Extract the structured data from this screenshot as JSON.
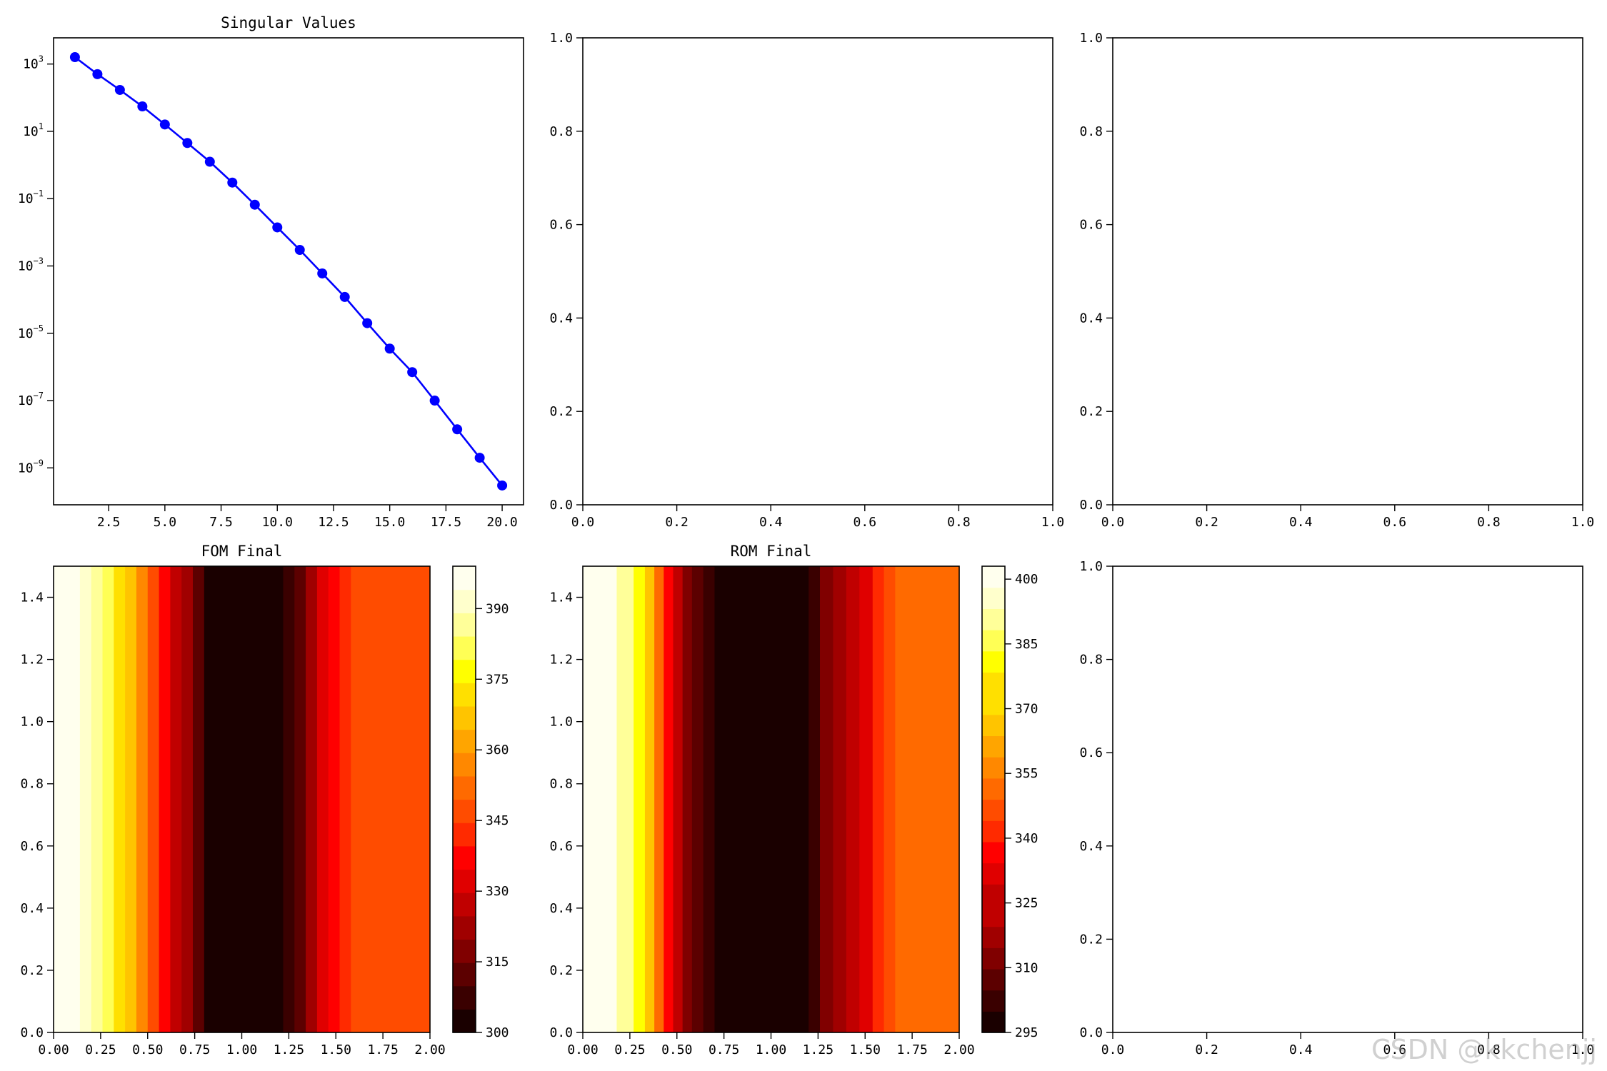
{
  "watermark": "CSDN @kkchenjj",
  "colors": {
    "line": "#0000ff",
    "hot": [
      "#1a0000",
      "#3a0000",
      "#5c0000",
      "#800000",
      "#a00000",
      "#c00000",
      "#e00000",
      "#ff0000",
      "#ff2a00",
      "#ff4c00",
      "#ff6a00",
      "#ff8800",
      "#ffa500",
      "#ffc400",
      "#ffe000",
      "#ffff00",
      "#ffff55",
      "#ffff99",
      "#ffffcc",
      "#ffffee"
    ]
  },
  "chart_data": [
    {
      "id": "singular",
      "type": "line",
      "title": "Singular Values",
      "xlabel": "",
      "ylabel": "",
      "yscale": "log",
      "x": [
        1,
        2,
        3,
        4,
        5,
        6,
        7,
        8,
        9,
        10,
        11,
        12,
        13,
        14,
        15,
        16,
        17,
        18,
        19,
        20
      ],
      "y": [
        1600,
        500,
        170,
        55,
        16,
        4.5,
        1.25,
        0.3,
        0.066,
        0.014,
        0.003,
        0.0006,
        0.00012,
        2e-05,
        3.5e-06,
        7e-07,
        1e-07,
        1.4e-08,
        2e-09,
        3e-10
      ],
      "xlim": [
        0.05,
        20.95
      ],
      "ylim": [
        8e-11,
        6000
      ],
      "xticks": [
        2.5,
        5.0,
        7.5,
        10.0,
        12.5,
        15.0,
        17.5,
        20.0
      ],
      "xtick_labels": [
        "2.5",
        "5.0",
        "7.5",
        "10.0",
        "12.5",
        "15.0",
        "17.5",
        "20.0"
      ],
      "yticks": [
        {
          "value": 1000,
          "base": "10",
          "exp": "3"
        },
        {
          "value": 10,
          "base": "10",
          "exp": "1"
        },
        {
          "value": 0.1,
          "base": "10",
          "exp": "−1"
        },
        {
          "value": 0.001,
          "base": "10",
          "exp": "−3"
        },
        {
          "value": 1e-05,
          "base": "10",
          "exp": "−5"
        },
        {
          "value": 1e-07,
          "base": "10",
          "exp": "−7"
        },
        {
          "value": 1e-09,
          "base": "10",
          "exp": "−9"
        }
      ]
    },
    {
      "id": "empty1",
      "type": "scatter",
      "title": "",
      "xlim": [
        0,
        1
      ],
      "ylim": [
        0,
        1
      ],
      "xticks": [
        0,
        0.2,
        0.4,
        0.6,
        0.8,
        1.0
      ],
      "xtick_labels": [
        "0.0",
        "0.2",
        "0.4",
        "0.6",
        "0.8",
        "1.0"
      ],
      "yticks": [
        0,
        0.2,
        0.4,
        0.6,
        0.8,
        1.0
      ],
      "ytick_labels": [
        "0.0",
        "0.2",
        "0.4",
        "0.6",
        "0.8",
        "1.0"
      ]
    },
    {
      "id": "empty2",
      "type": "scatter",
      "title": "",
      "xlim": [
        0,
        1
      ],
      "ylim": [
        0,
        1
      ],
      "xticks": [
        0,
        0.2,
        0.4,
        0.6,
        0.8,
        1.0
      ],
      "xtick_labels": [
        "0.0",
        "0.2",
        "0.4",
        "0.6",
        "0.8",
        "1.0"
      ],
      "yticks": [
        0,
        0.2,
        0.4,
        0.6,
        0.8,
        1.0
      ],
      "ytick_labels": [
        "0.0",
        "0.2",
        "0.4",
        "0.6",
        "0.8",
        "1.0"
      ]
    },
    {
      "id": "fom",
      "type": "heatmap",
      "title": "FOM Final",
      "xlim": [
        0,
        2
      ],
      "ylim": [
        0,
        1.5
      ],
      "xticks": [
        0,
        0.25,
        0.5,
        0.75,
        1.0,
        1.25,
        1.5,
        1.75,
        2.0
      ],
      "xtick_labels": [
        "0.00",
        "0.25",
        "0.50",
        "0.75",
        "1.00",
        "1.25",
        "1.50",
        "1.75",
        "2.00"
      ],
      "yticks": [
        0,
        0.2,
        0.4,
        0.6,
        0.8,
        1.0,
        1.2,
        1.4
      ],
      "ytick_labels": [
        "0.0",
        "0.2",
        "0.4",
        "0.6",
        "0.8",
        "1.0",
        "1.2",
        "1.4"
      ],
      "x": [
        0,
        0.07,
        0.14,
        0.2,
        0.26,
        0.32,
        0.38,
        0.44,
        0.5,
        0.56,
        0.62,
        0.68,
        0.74,
        0.8,
        1.0,
        1.22,
        1.28,
        1.34,
        1.4,
        1.46,
        1.52,
        1.58,
        1.64,
        1.74,
        1.9,
        2.0
      ],
      "values": [
        399,
        399,
        395,
        390,
        385,
        378,
        370,
        362,
        352,
        342,
        333,
        324,
        316,
        306,
        302,
        302,
        310,
        318,
        326,
        334,
        340,
        345,
        349,
        349,
        349,
        349
      ],
      "colorbar": {
        "min": 300,
        "max": 399,
        "levels": 20,
        "ticks": [
          300,
          315,
          330,
          345,
          360,
          375,
          390
        ],
        "tick_labels": [
          "300",
          "315",
          "330",
          "345",
          "360",
          "375",
          "390"
        ]
      }
    },
    {
      "id": "rom",
      "type": "heatmap",
      "title": "ROM Final",
      "xlim": [
        0,
        2
      ],
      "ylim": [
        0,
        1.5
      ],
      "xticks": [
        0,
        0.25,
        0.5,
        0.75,
        1.0,
        1.25,
        1.5,
        1.75,
        2.0
      ],
      "xtick_labels": [
        "0.00",
        "0.25",
        "0.50",
        "0.75",
        "1.00",
        "1.25",
        "1.50",
        "1.75",
        "2.00"
      ],
      "yticks": [
        0,
        0.2,
        0.4,
        0.6,
        0.8,
        1.0,
        1.2,
        1.4
      ],
      "ytick_labels": [
        "0.0",
        "0.2",
        "0.4",
        "0.6",
        "0.8",
        "1.0",
        "1.2",
        "1.4"
      ],
      "x": [
        0,
        0.09,
        0.18,
        0.27,
        0.33,
        0.38,
        0.43,
        0.48,
        0.53,
        0.58,
        0.64,
        0.7,
        0.76,
        1.0,
        1.2,
        1.26,
        1.33,
        1.4,
        1.47,
        1.54,
        1.6,
        1.66,
        1.78,
        1.9,
        2.0
      ],
      "values": [
        402,
        402,
        395,
        385,
        375,
        360,
        345,
        330,
        318,
        308,
        302,
        298,
        296,
        296,
        300,
        306,
        314,
        322,
        330,
        338,
        344,
        348,
        352,
        352,
        352
      ],
      "colorbar": {
        "min": 295,
        "max": 403,
        "levels": 22,
        "ticks": [
          295,
          310,
          325,
          340,
          355,
          370,
          385,
          400
        ],
        "tick_labels": [
          "295",
          "310",
          "325",
          "340",
          "355",
          "370",
          "385",
          "400"
        ]
      }
    },
    {
      "id": "empty3",
      "type": "scatter",
      "title": "",
      "xlim": [
        0,
        1
      ],
      "ylim": [
        0,
        1
      ],
      "xticks": [
        0,
        0.2,
        0.4,
        0.6,
        0.8,
        1.0
      ],
      "xtick_labels": [
        "0.0",
        "0.2",
        "0.4",
        "0.6",
        "0.8",
        "1.0"
      ],
      "yticks": [
        0,
        0.2,
        0.4,
        0.6,
        0.8,
        1.0
      ],
      "ytick_labels": [
        "0.0",
        "0.2",
        "0.4",
        "0.6",
        "0.8",
        "1.0"
      ]
    }
  ]
}
